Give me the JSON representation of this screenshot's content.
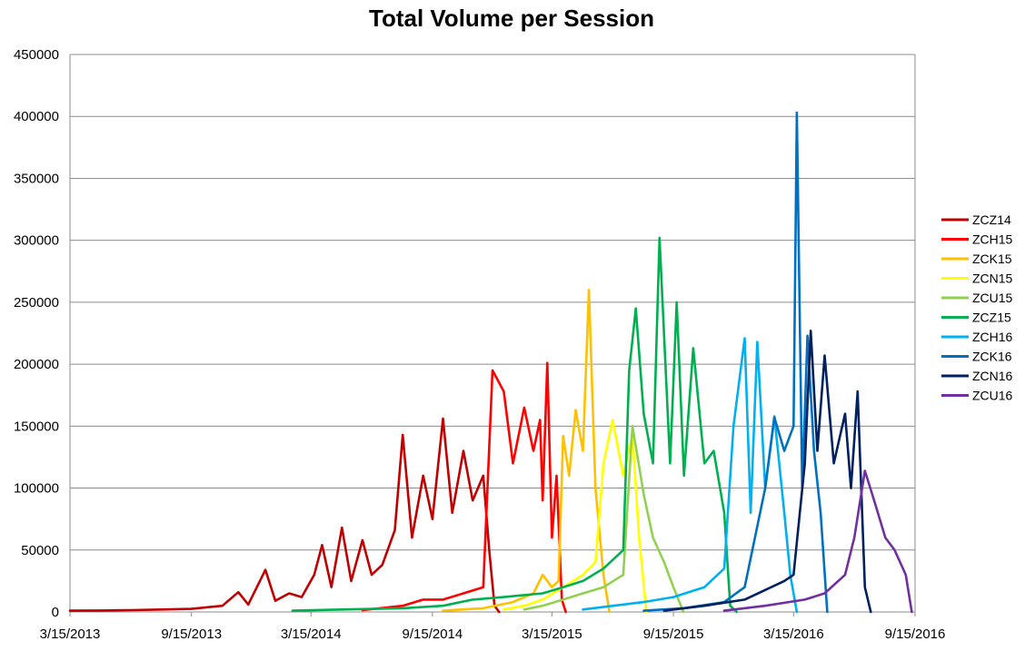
{
  "chart_data": {
    "type": "line",
    "title": "Total Volume per Session",
    "xlabel": "",
    "ylabel": "",
    "xlim": [
      "3/15/2013",
      "9/15/2016"
    ],
    "ylim": [
      0,
      450000
    ],
    "grid": true,
    "legend_position": "right",
    "x_ticks": [
      "3/15/2013",
      "9/15/2013",
      "3/15/2014",
      "9/15/2014",
      "3/15/2015",
      "9/15/2015",
      "3/15/2016",
      "9/15/2016"
    ],
    "y_ticks": [
      "0",
      "50000",
      "100000",
      "150000",
      "200000",
      "250000",
      "300000",
      "350000",
      "400000",
      "450000"
    ],
    "series": [
      {
        "name": "ZCZ14",
        "color": "#c00000",
        "points": [
          [
            "3/15/2013",
            1000
          ],
          [
            "5/1/2013",
            1200
          ],
          [
            "6/15/2013",
            1500
          ],
          [
            "8/1/2013",
            2000
          ],
          [
            "9/15/2013",
            2500
          ],
          [
            "11/1/2013",
            5000
          ],
          [
            "11/25/2013",
            16000
          ],
          [
            "12/10/2013",
            6000
          ],
          [
            "1/5/2014",
            34000
          ],
          [
            "1/20/2014",
            9000
          ],
          [
            "2/10/2014",
            15000
          ],
          [
            "3/1/2014",
            12000
          ],
          [
            "3/20/2014",
            30000
          ],
          [
            "4/1/2014",
            54000
          ],
          [
            "4/15/2014",
            20000
          ],
          [
            "5/1/2014",
            68000
          ],
          [
            "5/15/2014",
            25000
          ],
          [
            "6/1/2014",
            58000
          ],
          [
            "6/15/2014",
            30000
          ],
          [
            "7/1/2014",
            38000
          ],
          [
            "7/20/2014",
            66000
          ],
          [
            "8/1/2014",
            143000
          ],
          [
            "8/15/2014",
            60000
          ],
          [
            "9/1/2014",
            110000
          ],
          [
            "9/15/2014",
            75000
          ],
          [
            "10/1/2014",
            156000
          ],
          [
            "10/15/2014",
            80000
          ],
          [
            "11/1/2014",
            130000
          ],
          [
            "11/15/2014",
            90000
          ],
          [
            "12/1/2014",
            110000
          ],
          [
            "12/10/2014",
            50000
          ],
          [
            "12/18/2014",
            5000
          ],
          [
            "12/25/2014",
            0
          ]
        ]
      },
      {
        "name": "ZCH15",
        "color": "#ff0000",
        "points": [
          [
            "6/1/2014",
            1500
          ],
          [
            "8/1/2014",
            5000
          ],
          [
            "9/1/2014",
            10000
          ],
          [
            "10/1/2014",
            10000
          ],
          [
            "11/1/2014",
            15000
          ],
          [
            "12/1/2014",
            20000
          ],
          [
            "12/15/2014",
            195000
          ],
          [
            "1/1/2015",
            178000
          ],
          [
            "1/15/2015",
            120000
          ],
          [
            "2/1/2015",
            165000
          ],
          [
            "2/15/2015",
            130000
          ],
          [
            "2/25/2015",
            155000
          ],
          [
            "3/1/2015",
            90000
          ],
          [
            "3/8/2015",
            201000
          ],
          [
            "3/15/2015",
            60000
          ],
          [
            "3/22/2015",
            110000
          ],
          [
            "3/30/2015",
            10000
          ],
          [
            "4/5/2015",
            0
          ]
        ]
      },
      {
        "name": "ZCK15",
        "color": "#ffc000",
        "points": [
          [
            "10/1/2014",
            1000
          ],
          [
            "12/1/2014",
            3000
          ],
          [
            "1/15/2015",
            8000
          ],
          [
            "2/15/2015",
            15000
          ],
          [
            "3/1/2015",
            30000
          ],
          [
            "3/15/2015",
            20000
          ],
          [
            "3/25/2015",
            25000
          ],
          [
            "4/1/2015",
            142000
          ],
          [
            "4/10/2015",
            110000
          ],
          [
            "4/20/2015",
            163000
          ],
          [
            "5/1/2015",
            130000
          ],
          [
            "5/10/2015",
            260000
          ],
          [
            "5/20/2015",
            100000
          ],
          [
            "6/1/2015",
            30000
          ],
          [
            "6/10/2015",
            0
          ]
        ]
      },
      {
        "name": "ZCN15",
        "color": "#ffff00",
        "points": [
          [
            "1/1/2015",
            2000
          ],
          [
            "2/1/2015",
            5000
          ],
          [
            "3/1/2015",
            10000
          ],
          [
            "4/1/2015",
            20000
          ],
          [
            "5/1/2015",
            30000
          ],
          [
            "5/20/2015",
            40000
          ],
          [
            "6/1/2015",
            120000
          ],
          [
            "6/15/2015",
            155000
          ],
          [
            "7/1/2015",
            110000
          ],
          [
            "7/15/2015",
            143000
          ],
          [
            "7/25/2015",
            60000
          ],
          [
            "8/5/2015",
            0
          ]
        ]
      },
      {
        "name": "ZCU15",
        "color": "#92d050",
        "points": [
          [
            "2/1/2015",
            2000
          ],
          [
            "3/1/2015",
            5000
          ],
          [
            "4/1/2015",
            10000
          ],
          [
            "5/1/2015",
            15000
          ],
          [
            "6/1/2015",
            20000
          ],
          [
            "7/1/2015",
            30000
          ],
          [
            "7/15/2015",
            150000
          ],
          [
            "8/1/2015",
            95000
          ],
          [
            "8/15/2015",
            60000
          ],
          [
            "9/1/2015",
            40000
          ],
          [
            "9/15/2015",
            20000
          ],
          [
            "9/30/2015",
            0
          ]
        ]
      },
      {
        "name": "ZCZ15",
        "color": "#00b050",
        "points": [
          [
            "2/15/2014",
            1000
          ],
          [
            "5/1/2014",
            2000
          ],
          [
            "8/1/2014",
            3000
          ],
          [
            "10/1/2014",
            5000
          ],
          [
            "11/15/2014",
            10000
          ],
          [
            "1/1/2015",
            12000
          ],
          [
            "3/1/2015",
            15000
          ],
          [
            "4/1/2015",
            20000
          ],
          [
            "5/1/2015",
            25000
          ],
          [
            "6/1/2015",
            35000
          ],
          [
            "7/1/2015",
            50000
          ],
          [
            "7/10/2015",
            195000
          ],
          [
            "7/20/2015",
            245000
          ],
          [
            "8/1/2015",
            160000
          ],
          [
            "8/15/2015",
            120000
          ],
          [
            "8/25/2015",
            302000
          ],
          [
            "9/10/2015",
            120000
          ],
          [
            "9/20/2015",
            250000
          ],
          [
            "10/1/2015",
            110000
          ],
          [
            "10/15/2015",
            213000
          ],
          [
            "11/1/2015",
            120000
          ],
          [
            "11/15/2015",
            130000
          ],
          [
            "12/1/2015",
            80000
          ],
          [
            "12/10/2015",
            5000
          ],
          [
            "12/20/2015",
            0
          ]
        ]
      },
      {
        "name": "ZCH16",
        "color": "#00b0f0",
        "points": [
          [
            "5/1/2015",
            2000
          ],
          [
            "8/1/2015",
            8000
          ],
          [
            "9/15/2015",
            12000
          ],
          [
            "11/1/2015",
            20000
          ],
          [
            "12/1/2015",
            35000
          ],
          [
            "12/15/2015",
            150000
          ],
          [
            "1/1/2016",
            221000
          ],
          [
            "1/10/2016",
            80000
          ],
          [
            "1/20/2016",
            218000
          ],
          [
            "2/1/2016",
            100000
          ],
          [
            "2/15/2016",
            158000
          ],
          [
            "3/1/2016",
            80000
          ],
          [
            "3/10/2016",
            30000
          ],
          [
            "3/20/2016",
            0
          ]
        ]
      },
      {
        "name": "ZCK16",
        "color": "#0070c0",
        "points": [
          [
            "8/1/2015",
            1000
          ],
          [
            "10/1/2015",
            3000
          ],
          [
            "12/1/2015",
            8000
          ],
          [
            "1/1/2016",
            20000
          ],
          [
            "2/1/2016",
            100000
          ],
          [
            "2/15/2016",
            157000
          ],
          [
            "3/1/2016",
            130000
          ],
          [
            "3/15/2016",
            150000
          ],
          [
            "3/20/2016",
            403000
          ],
          [
            "3/28/2016",
            100000
          ],
          [
            "4/5/2016",
            223000
          ],
          [
            "4/15/2016",
            130000
          ],
          [
            "4/25/2016",
            80000
          ],
          [
            "5/5/2016",
            0
          ]
        ]
      },
      {
        "name": "ZCN16",
        "color": "#002060",
        "points": [
          [
            "9/1/2015",
            1000
          ],
          [
            "11/1/2015",
            5000
          ],
          [
            "1/1/2016",
            10000
          ],
          [
            "3/1/2016",
            25000
          ],
          [
            "3/15/2016",
            30000
          ],
          [
            "4/1/2016",
            120000
          ],
          [
            "4/10/2016",
            227000
          ],
          [
            "4/20/2016",
            130000
          ],
          [
            "5/1/2016",
            207000
          ],
          [
            "5/15/2016",
            120000
          ],
          [
            "6/1/2016",
            160000
          ],
          [
            "6/10/2016",
            100000
          ],
          [
            "6/20/2016",
            178000
          ],
          [
            "7/1/2016",
            20000
          ],
          [
            "7/10/2016",
            0
          ]
        ]
      },
      {
        "name": "ZCU16",
        "color": "#7030a0",
        "points": [
          [
            "12/1/2015",
            1000
          ],
          [
            "2/1/2016",
            5000
          ],
          [
            "4/1/2016",
            10000
          ],
          [
            "5/1/2016",
            15000
          ],
          [
            "6/1/2016",
            30000
          ],
          [
            "6/15/2016",
            60000
          ],
          [
            "7/1/2016",
            114000
          ],
          [
            "7/15/2016",
            90000
          ],
          [
            "8/1/2016",
            60000
          ],
          [
            "8/15/2016",
            50000
          ],
          [
            "9/1/2016",
            30000
          ],
          [
            "9/10/2016",
            0
          ]
        ]
      }
    ]
  }
}
